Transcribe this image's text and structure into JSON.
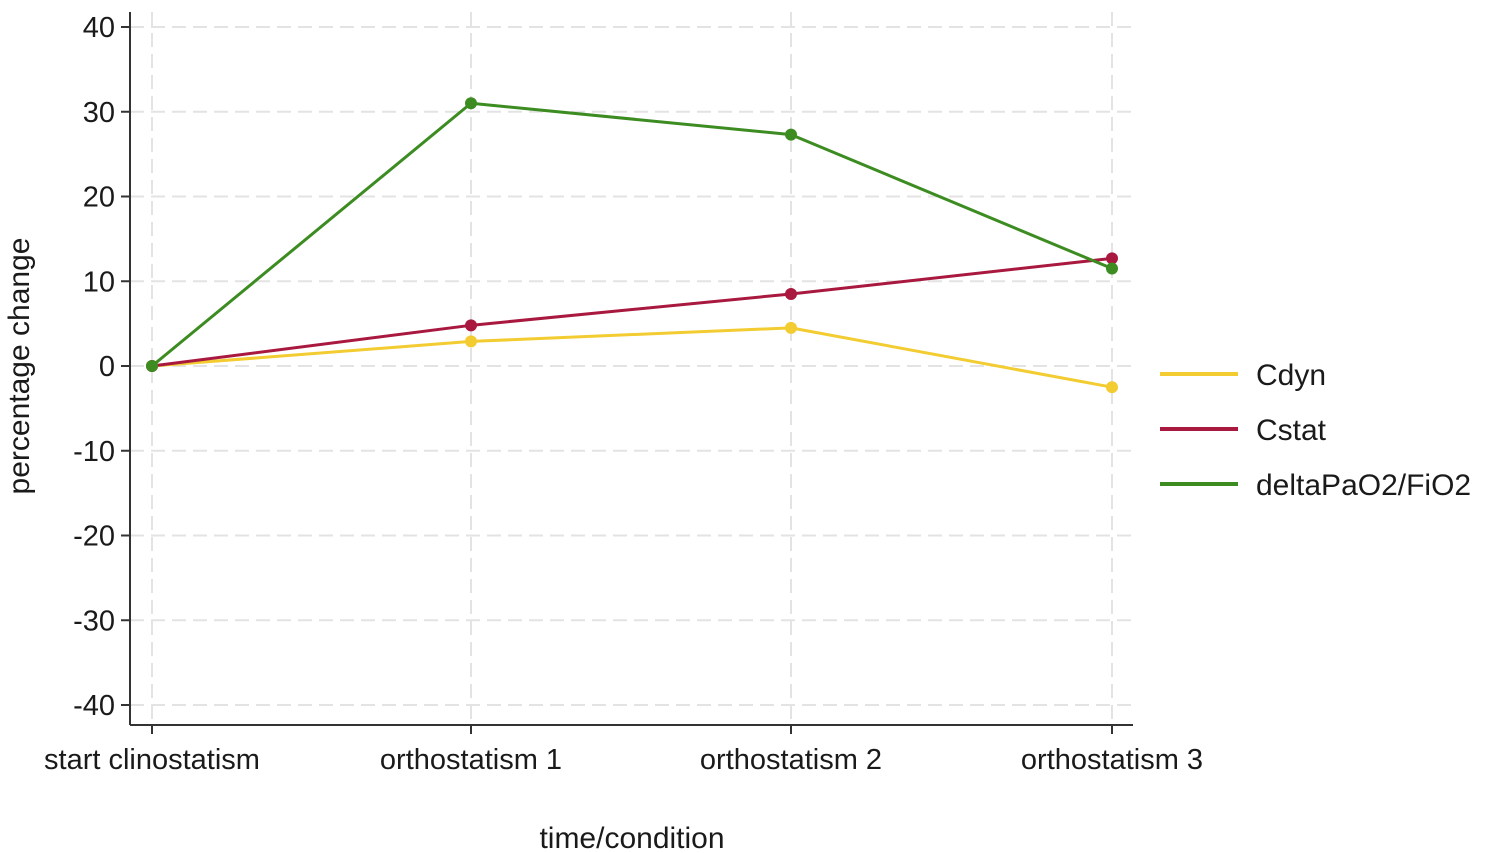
{
  "chart_data": {
    "type": "line",
    "title": "",
    "xlabel": "time/condition",
    "ylabel": "percentage change",
    "categories": [
      "start clinostatism",
      "orthostatism 1",
      "orthostatism 2",
      "orthostatism 3"
    ],
    "ylim": [
      -40,
      40
    ],
    "yticks": [
      40,
      30,
      20,
      10,
      0,
      -10,
      -20,
      -30,
      -40
    ],
    "grid": true,
    "legend_position": "right",
    "series": [
      {
        "name": "Cdyn",
        "color": "#f2cc30",
        "values": [
          0,
          2.9,
          4.5,
          -2.5
        ]
      },
      {
        "name": "Cstat",
        "color": "#a8183f",
        "values": [
          0,
          4.8,
          8.5,
          12.7
        ]
      },
      {
        "name": "deltaPaO2/FiO2",
        "color": "#3c8c22",
        "values": [
          0,
          31.0,
          27.3,
          11.5
        ]
      }
    ]
  }
}
